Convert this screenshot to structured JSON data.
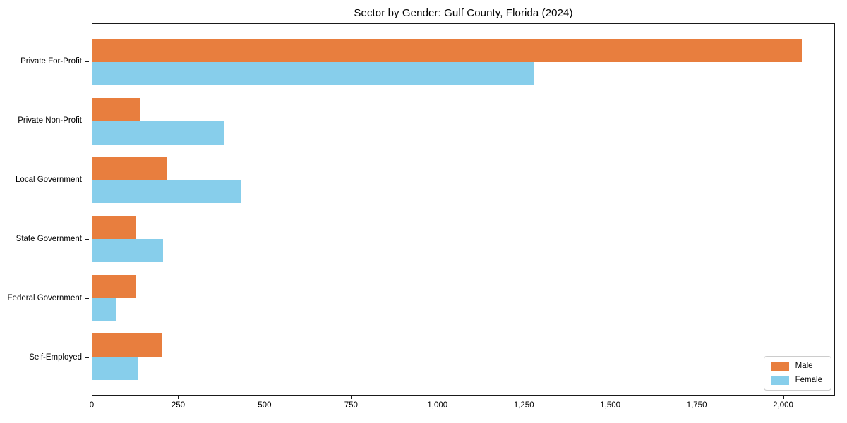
{
  "chart_data": {
    "type": "bar",
    "orientation": "horizontal",
    "title": "Sector by Gender: Gulf County, Florida (2024)",
    "categories": [
      "Private For-Profit",
      "Private Non-Profit",
      "Local Government",
      "State Government",
      "Federal Government",
      "Self-Employed"
    ],
    "series": [
      {
        "name": "Male",
        "color": "#e87e3e",
        "values": [
          2055,
          140,
          215,
          125,
          125,
          200
        ]
      },
      {
        "name": "Female",
        "color": "#87ceeb",
        "values": [
          1280,
          380,
          430,
          205,
          70,
          130
        ]
      }
    ],
    "xlim": [
      0,
      2150
    ],
    "xticks": [
      0,
      250,
      500,
      750,
      1000,
      1250,
      1500,
      1750,
      2000
    ],
    "xtick_labels": [
      "0",
      "250",
      "500",
      "750",
      "1,000",
      "1,250",
      "1,500",
      "1,750",
      "2,000"
    ],
    "legend_position": "lower right",
    "grid": false,
    "xlabel": "",
    "ylabel": ""
  },
  "colors": {
    "spine": "#1a1a1a",
    "legend_border": "#cccccc",
    "background": "#ffffff"
  }
}
